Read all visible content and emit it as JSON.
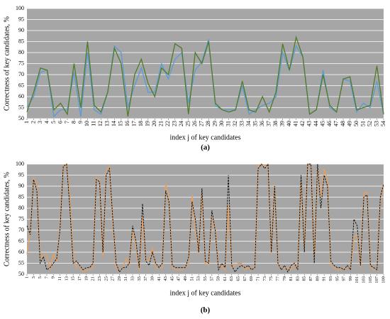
{
  "chart_data": [
    {
      "type": "line",
      "panel_label": "(a)",
      "ylabel": "Correctness of key candidates, %",
      "xlabel": "index j of key candidates",
      "x": [
        1,
        2,
        3,
        4,
        5,
        6,
        7,
        8,
        9,
        10,
        11,
        12,
        13,
        14,
        15,
        16,
        17,
        18,
        19,
        20,
        21,
        22,
        23,
        24,
        25,
        26,
        27,
        28,
        29,
        30,
        31,
        32,
        33,
        34,
        35,
        36,
        37,
        38,
        39,
        40,
        41,
        42,
        43,
        44,
        45,
        46,
        47,
        48,
        49,
        50,
        51,
        52,
        53,
        54
      ],
      "xlim": [
        1,
        54
      ],
      "xticks": [
        1,
        2,
        3,
        4,
        5,
        6,
        7,
        8,
        9,
        10,
        11,
        12,
        13,
        14,
        15,
        16,
        17,
        18,
        19,
        20,
        21,
        22,
        23,
        24,
        25,
        26,
        27,
        28,
        29,
        30,
        31,
        32,
        33,
        34,
        35,
        36,
        37,
        38,
        39,
        40,
        41,
        42,
        43,
        44,
        45,
        46,
        47,
        48,
        49,
        50,
        51,
        52,
        53,
        54
      ],
      "ylim": [
        50,
        100
      ],
      "yticks": [
        50,
        55,
        60,
        65,
        70,
        75,
        80,
        85,
        90,
        95,
        100
      ],
      "grid": true,
      "series": [
        {
          "color": "#5b9bd5",
          "dash": false,
          "values": [
            55,
            60,
            71,
            72,
            51,
            54,
            54,
            71,
            51,
            80,
            54,
            52,
            62,
            83,
            80,
            55,
            65,
            73,
            62,
            62,
            75,
            68,
            77,
            80,
            57,
            72,
            76,
            86,
            56,
            54,
            54,
            54,
            65,
            52,
            54,
            56,
            57,
            60,
            80,
            72,
            83,
            78,
            52,
            54,
            72,
            55,
            53,
            68,
            67,
            53,
            57,
            55,
            67,
            52
          ]
        },
        {
          "color": "#4f7a28",
          "dash": false,
          "values": [
            53,
            62,
            73,
            72,
            54,
            57,
            52,
            75,
            55,
            85,
            56,
            53,
            62,
            82,
            75,
            51,
            70,
            77,
            66,
            60,
            73,
            70,
            84,
            82,
            52,
            80,
            75,
            85,
            57,
            54,
            53,
            54,
            67,
            54,
            53,
            60,
            53,
            62,
            84,
            72,
            87,
            78,
            52,
            54,
            70,
            56,
            53,
            68,
            69,
            54,
            55,
            56,
            74,
            52
          ]
        }
      ]
    },
    {
      "type": "line",
      "panel_label": "(b)",
      "ylabel": "Correctness of key candidates, %",
      "xlabel": "index j of key candidates",
      "x": [
        1,
        2,
        3,
        4,
        5,
        6,
        7,
        8,
        9,
        10,
        11,
        12,
        13,
        14,
        15,
        16,
        17,
        18,
        19,
        20,
        21,
        22,
        23,
        24,
        25,
        26,
        27,
        28,
        29,
        30,
        31,
        32,
        33,
        34,
        35,
        36,
        37,
        38,
        39,
        40,
        41,
        42,
        43,
        44,
        45,
        46,
        47,
        48,
        49,
        50,
        51,
        52,
        53,
        54,
        55,
        56,
        57,
        58,
        59,
        60,
        61,
        62,
        63,
        64,
        65,
        66,
        67,
        68,
        69,
        70,
        71,
        72,
        73,
        74,
        75,
        76,
        77,
        78,
        79,
        80,
        81,
        82,
        83,
        84,
        85,
        86,
        87,
        88,
        89,
        90,
        91,
        92,
        93,
        94,
        95,
        96,
        97,
        98,
        99,
        100,
        101,
        102,
        103,
        104,
        105,
        106,
        107,
        108,
        109
      ],
      "xlim": [
        1,
        109
      ],
      "xticks": [
        1,
        3,
        5,
        7,
        9,
        11,
        13,
        15,
        17,
        19,
        21,
        23,
        25,
        27,
        29,
        31,
        33,
        35,
        37,
        39,
        41,
        43,
        45,
        47,
        49,
        51,
        53,
        55,
        57,
        59,
        61,
        63,
        65,
        67,
        69,
        71,
        73,
        75,
        77,
        79,
        81,
        83,
        85,
        87,
        89,
        91,
        93,
        95,
        97,
        99,
        101,
        103,
        105,
        107,
        109
      ],
      "ylim": [
        50,
        100
      ],
      "yticks": [
        50,
        55,
        60,
        65,
        70,
        75,
        80,
        85,
        90,
        95,
        100
      ],
      "grid": true,
      "series": [
        {
          "color": "#e8a060",
          "dash": false,
          "values": [
            59,
            70,
            94,
            90,
            57,
            59,
            59,
            52,
            59,
            56,
            72,
            98,
            100,
            85,
            58,
            53,
            54,
            51,
            52,
            52,
            53,
            94,
            93,
            58,
            97,
            99,
            72,
            53,
            52,
            53,
            57,
            54,
            70,
            62,
            52,
            76,
            56,
            56,
            62,
            53,
            53,
            53,
            91,
            85,
            53,
            52,
            52,
            52,
            53,
            55,
            86,
            70,
            59,
            87,
            55,
            54,
            76,
            72,
            53,
            54,
            52,
            82,
            53,
            54,
            55,
            55,
            52,
            53,
            52,
            54,
            99,
            100,
            99,
            100,
            59,
            91,
            54,
            53,
            53,
            53,
            52,
            55,
            53,
            93,
            62,
            100,
            100,
            57,
            99,
            85,
            98,
            93,
            54,
            53,
            52,
            52,
            53,
            53,
            53,
            67,
            68,
            53,
            87,
            87,
            53,
            52,
            52,
            84,
            90
          ]
        },
        {
          "color": "#000000",
          "dash": true,
          "values": [
            72,
            68,
            93,
            88,
            55,
            58,
            52,
            53,
            55,
            57,
            70,
            99,
            100,
            80,
            55,
            56,
            54,
            52,
            53,
            53,
            55,
            93,
            92,
            60,
            95,
            98,
            75,
            55,
            51,
            53,
            53,
            55,
            72,
            65,
            53,
            82,
            56,
            54,
            60,
            55,
            53,
            55,
            88,
            83,
            54,
            53,
            53,
            53,
            53,
            58,
            83,
            75,
            60,
            89,
            56,
            55,
            79,
            70,
            52,
            55,
            53,
            95,
            54,
            51,
            53,
            54,
            53,
            54,
            52,
            53,
            98,
            100,
            98,
            100,
            60,
            90,
            55,
            52,
            54,
            51,
            54,
            55,
            52,
            95,
            60,
            100,
            100,
            55,
            100,
            80,
            95,
            90,
            56,
            54,
            53,
            53,
            52,
            54,
            52,
            75,
            72,
            54,
            85,
            86,
            54,
            53,
            52,
            85,
            91
          ]
        }
      ]
    }
  ]
}
